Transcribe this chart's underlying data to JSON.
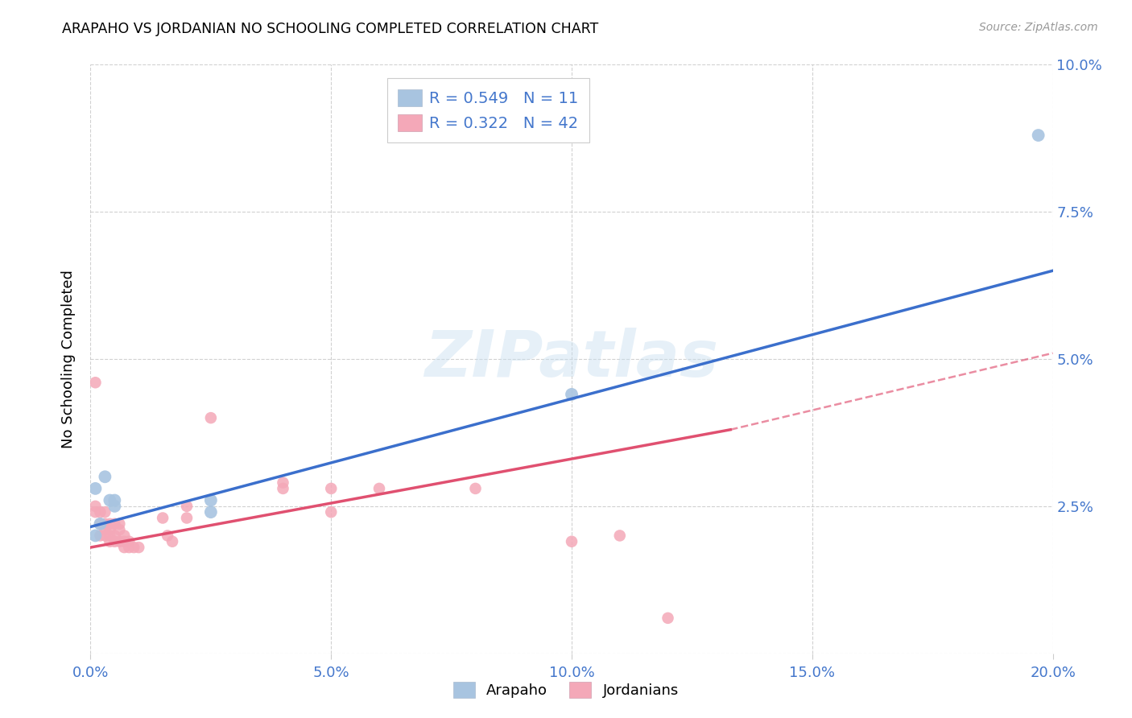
{
  "title": "ARAPAHO VS JORDANIAN NO SCHOOLING COMPLETED CORRELATION CHART",
  "source": "Source: ZipAtlas.com",
  "ylabel": "No Schooling Completed",
  "xlim": [
    0.0,
    0.2
  ],
  "ylim": [
    0.0,
    0.1
  ],
  "xticks": [
    0.0,
    0.05,
    0.1,
    0.15,
    0.2
  ],
  "yticks": [
    0.0,
    0.025,
    0.05,
    0.075,
    0.1
  ],
  "xtick_labels": [
    "0.0%",
    "5.0%",
    "10.0%",
    "15.0%",
    "20.0%"
  ],
  "ytick_labels_right": [
    "",
    "2.5%",
    "5.0%",
    "7.5%",
    "10.0%"
  ],
  "arapaho_color": "#a8c4e0",
  "jordanian_color": "#f4a8b8",
  "arapaho_line_color": "#3b6fcc",
  "jordanian_line_color": "#e05070",
  "arapaho_R": 0.549,
  "arapaho_N": 11,
  "jordanian_R": 0.322,
  "jordanian_N": 42,
  "arapaho_points": [
    [
      0.001,
      0.028
    ],
    [
      0.003,
      0.03
    ],
    [
      0.004,
      0.026
    ],
    [
      0.005,
      0.026
    ],
    [
      0.005,
      0.025
    ],
    [
      0.002,
      0.022
    ],
    [
      0.001,
      0.02
    ],
    [
      0.025,
      0.026
    ],
    [
      0.025,
      0.024
    ],
    [
      0.1,
      0.044
    ],
    [
      0.197,
      0.088
    ]
  ],
  "jordanian_points": [
    [
      0.001,
      0.025
    ],
    [
      0.001,
      0.024
    ],
    [
      0.001,
      0.046
    ],
    [
      0.002,
      0.024
    ],
    [
      0.002,
      0.022
    ],
    [
      0.002,
      0.02
    ],
    [
      0.003,
      0.024
    ],
    [
      0.003,
      0.022
    ],
    [
      0.003,
      0.021
    ],
    [
      0.003,
      0.02
    ],
    [
      0.004,
      0.022
    ],
    [
      0.004,
      0.021
    ],
    [
      0.004,
      0.02
    ],
    [
      0.004,
      0.019
    ],
    [
      0.005,
      0.022
    ],
    [
      0.005,
      0.02
    ],
    [
      0.005,
      0.019
    ],
    [
      0.006,
      0.022
    ],
    [
      0.006,
      0.021
    ],
    [
      0.006,
      0.019
    ],
    [
      0.007,
      0.02
    ],
    [
      0.007,
      0.018
    ],
    [
      0.007,
      0.019
    ],
    [
      0.008,
      0.019
    ],
    [
      0.008,
      0.018
    ],
    [
      0.009,
      0.018
    ],
    [
      0.01,
      0.018
    ],
    [
      0.015,
      0.023
    ],
    [
      0.016,
      0.02
    ],
    [
      0.017,
      0.019
    ],
    [
      0.02,
      0.025
    ],
    [
      0.02,
      0.023
    ],
    [
      0.025,
      0.04
    ],
    [
      0.04,
      0.029
    ],
    [
      0.04,
      0.028
    ],
    [
      0.05,
      0.028
    ],
    [
      0.05,
      0.024
    ],
    [
      0.06,
      0.028
    ],
    [
      0.08,
      0.028
    ],
    [
      0.1,
      0.019
    ],
    [
      0.11,
      0.02
    ],
    [
      0.12,
      0.006
    ]
  ],
  "arapaho_line": {
    "x0": 0.0,
    "y0": 0.0215,
    "x1": 0.2,
    "y1": 0.065
  },
  "jordanian_line_solid": {
    "x0": 0.0,
    "y0": 0.018,
    "x1": 0.133,
    "y1": 0.038
  },
  "jordanian_line_dash": {
    "x0": 0.133,
    "y0": 0.038,
    "x1": 0.2,
    "y1": 0.051
  },
  "watermark": "ZIPatlas",
  "legend_label_arapaho": "Arapaho",
  "legend_label_jordanian": "Jordanians"
}
